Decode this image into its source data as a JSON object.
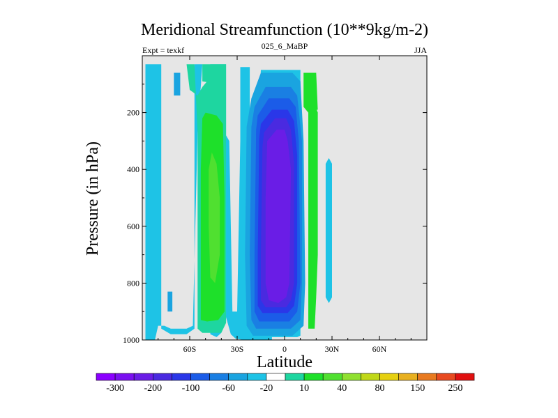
{
  "chart_data": {
    "type": "heatmap",
    "subtype": "filled-contour",
    "title": "Meridional Streamfunction (10**9kg/m-2)",
    "left_label": "Expt = texkf",
    "center_label": "025_6_MaBP",
    "right_label": "JJA",
    "xlabel": "Latitude",
    "ylabel": "Pressure (in hPa)",
    "xlim": [
      -90,
      90
    ],
    "ylim": [
      1000,
      0
    ],
    "x_ticks": [
      {
        "value": -60,
        "label": "60S"
      },
      {
        "value": -30,
        "label": "30S"
      },
      {
        "value": 0,
        "label": "0"
      },
      {
        "value": 30,
        "label": "30N"
      },
      {
        "value": 60,
        "label": "60N"
      }
    ],
    "y_ticks": [
      {
        "value": 200,
        "label": "200"
      },
      {
        "value": 400,
        "label": "400"
      },
      {
        "value": 600,
        "label": "600"
      },
      {
        "value": 800,
        "label": "800"
      },
      {
        "value": 1000,
        "label": "1000"
      }
    ],
    "missing_color": "#e6e6e6",
    "colorbar": {
      "colors": [
        "#8b00ff",
        "#7a10f0",
        "#6a1de6",
        "#4a2ae0",
        "#2a37e8",
        "#1b5ce8",
        "#1a7fe3",
        "#1aa4e0",
        "#1ec3e6",
        "#ffffff",
        "#1ed6a0",
        "#1ee02a",
        "#50e030",
        "#90e030",
        "#c0d818",
        "#e6d010",
        "#e8b020",
        "#e87a20",
        "#e84a20",
        "#e01010"
      ],
      "labels": [
        "-300",
        "-200",
        "-100",
        "-60",
        "-20",
        "10",
        "40",
        "80",
        "150",
        "250"
      ]
    },
    "regions": [
      {
        "name": "sh-high-lat-low-negative",
        "value": -10,
        "level": 8,
        "outline": [
          [
            -88,
            1000
          ],
          [
            -88,
            30
          ],
          [
            -78,
            30
          ],
          [
            -78,
            960
          ],
          [
            -72,
            980
          ],
          [
            -62,
            980
          ],
          [
            -57,
            960
          ],
          [
            -57,
            30
          ],
          [
            -47,
            30
          ],
          [
            -47,
            980
          ],
          [
            -43,
            990
          ],
          [
            -40,
            975
          ],
          [
            -37,
            920
          ],
          [
            -34,
            980
          ],
          [
            -31,
            995
          ],
          [
            -26,
            1000
          ],
          [
            -8,
            1000
          ],
          [
            -8,
            990
          ],
          [
            8,
            990
          ],
          [
            10,
            985
          ],
          [
            10,
            50
          ],
          [
            -15,
            50
          ],
          [
            -17,
            250
          ],
          [
            -20,
            280
          ],
          [
            -22,
            240
          ],
          [
            -22,
            40
          ],
          [
            -28,
            40
          ],
          [
            -28,
            300
          ],
          [
            -30,
            900
          ],
          [
            -33,
            900
          ],
          [
            -35,
            300
          ],
          [
            -37,
            280
          ],
          [
            -37,
            30
          ],
          [
            -52,
            30
          ],
          [
            -55,
            270
          ],
          [
            -58,
            950
          ],
          [
            -62,
            960
          ],
          [
            -72,
            960
          ],
          [
            -76,
            950
          ],
          [
            -80,
            950
          ],
          [
            -82,
            1000
          ]
        ]
      },
      {
        "name": "sh-inner-band-1",
        "value": -20,
        "level": 7,
        "outline": [
          [
            -70,
            60
          ],
          [
            -66,
            60
          ],
          [
            -66,
            140
          ],
          [
            -70,
            140
          ]
        ]
      },
      {
        "name": "sh-inner-band-2",
        "value": -20,
        "level": 7,
        "outline": [
          [
            -74,
            830
          ],
          [
            -71,
            830
          ],
          [
            -71,
            900
          ],
          [
            -74,
            900
          ]
        ]
      },
      {
        "name": "sh-green-outer",
        "value": 20,
        "level": 10,
        "outline": [
          [
            -64,
            30
          ],
          [
            -57,
            30
          ],
          [
            -55,
            270
          ],
          [
            -55,
            960
          ],
          [
            -52,
            975
          ],
          [
            -40,
            975
          ],
          [
            -37,
            940
          ],
          [
            -37,
            800
          ],
          [
            -37,
            280
          ],
          [
            -37,
            30
          ],
          [
            -52,
            30
          ],
          [
            -52,
            90
          ],
          [
            -47,
            95
          ],
          [
            -40,
            100
          ],
          [
            -40,
            30
          ],
          [
            -44,
            30
          ],
          [
            -49,
            90
          ],
          [
            -52,
            110
          ],
          [
            -55,
            140
          ],
          [
            -60,
            120
          ],
          [
            -62,
            30
          ]
        ]
      },
      {
        "name": "sh-green-inner",
        "value": 30,
        "level": 11,
        "outline": [
          [
            -50,
            200
          ],
          [
            -43,
            210
          ],
          [
            -39,
            240
          ],
          [
            -38,
            500
          ],
          [
            -38,
            900
          ],
          [
            -42,
            930
          ],
          [
            -49,
            935
          ],
          [
            -53,
            930
          ],
          [
            -53,
            400
          ],
          [
            -52,
            220
          ]
        ]
      },
      {
        "name": "sh-yellowgreen",
        "value": 40,
        "level": 12,
        "outline": [
          [
            -46,
            340
          ],
          [
            -43,
            380
          ],
          [
            -41,
            500
          ],
          [
            -41,
            700
          ],
          [
            -44,
            800
          ],
          [
            -47,
            780
          ],
          [
            -48,
            600
          ],
          [
            -48,
            400
          ]
        ]
      },
      {
        "name": "nh-green-strip",
        "value": 20,
        "level": 11,
        "outline": [
          [
            15,
            200
          ],
          [
            19,
            170
          ],
          [
            21,
            200
          ],
          [
            21,
            700
          ],
          [
            20,
            850
          ],
          [
            19,
            960
          ],
          [
            15,
            960
          ],
          [
            15,
            700
          ]
        ]
      },
      {
        "name": "nh-blue-small",
        "value": -10,
        "level": 8,
        "outline": [
          [
            26,
            380
          ],
          [
            28,
            360
          ],
          [
            30,
            380
          ],
          [
            30,
            850
          ],
          [
            28,
            870
          ],
          [
            26,
            850
          ]
        ]
      },
      {
        "name": "nh-green-top",
        "value": 20,
        "level": 11,
        "outline": [
          [
            12,
            60
          ],
          [
            20,
            60
          ],
          [
            21,
            190
          ],
          [
            18,
            190
          ],
          [
            15,
            200
          ],
          [
            12,
            180
          ]
        ]
      },
      {
        "name": "equatorial-cell-l1",
        "value": -20,
        "level": 7,
        "outline": [
          [
            -21,
            150
          ],
          [
            -15,
            60
          ],
          [
            5,
            60
          ],
          [
            10,
            90
          ],
          [
            12,
            300
          ],
          [
            13,
            800
          ],
          [
            12,
            950
          ],
          [
            5,
            985
          ],
          [
            -20,
            985
          ],
          [
            -24,
            950
          ],
          [
            -25,
            700
          ],
          [
            -24,
            250
          ]
        ]
      },
      {
        "name": "equatorial-cell-l2",
        "value": -40,
        "level": 6,
        "outline": [
          [
            -19,
            180
          ],
          [
            -12,
            110
          ],
          [
            4,
            110
          ],
          [
            8,
            140
          ],
          [
            11,
            300
          ],
          [
            11,
            800
          ],
          [
            10,
            930
          ],
          [
            4,
            960
          ],
          [
            -18,
            960
          ],
          [
            -21,
            930
          ],
          [
            -22,
            700
          ],
          [
            -21,
            250
          ]
        ]
      },
      {
        "name": "equatorial-cell-l3",
        "value": -60,
        "level": 5,
        "outline": [
          [
            -17,
            210
          ],
          [
            -10,
            150
          ],
          [
            3,
            150
          ],
          [
            7,
            180
          ],
          [
            9,
            300
          ],
          [
            10,
            800
          ],
          [
            8,
            900
          ],
          [
            3,
            935
          ],
          [
            -16,
            935
          ],
          [
            -19,
            900
          ],
          [
            -19,
            700
          ],
          [
            -18,
            260
          ]
        ]
      },
      {
        "name": "equatorial-cell-l4",
        "value": -100,
        "level": 4,
        "outline": [
          [
            -15,
            240
          ],
          [
            -8,
            190
          ],
          [
            2,
            190
          ],
          [
            6,
            230
          ],
          [
            8,
            350
          ],
          [
            8,
            800
          ],
          [
            6,
            880
          ],
          [
            2,
            905
          ],
          [
            -14,
            905
          ],
          [
            -17,
            880
          ],
          [
            -17,
            700
          ],
          [
            -16,
            290
          ]
        ]
      },
      {
        "name": "equatorial-cell-l5",
        "value": -150,
        "level": 3,
        "outline": [
          [
            -13,
            270
          ],
          [
            -6,
            220
          ],
          [
            1,
            220
          ],
          [
            4,
            260
          ],
          [
            6,
            380
          ],
          [
            6,
            800
          ],
          [
            4,
            860
          ],
          [
            1,
            885
          ],
          [
            -12,
            885
          ],
          [
            -15,
            860
          ],
          [
            -15,
            700
          ],
          [
            -14,
            320
          ]
        ]
      },
      {
        "name": "equatorial-cell-l6",
        "value": -200,
        "level": 2,
        "outline": [
          [
            -11,
            300
          ],
          [
            -5,
            260
          ],
          [
            0,
            260
          ],
          [
            2,
            300
          ],
          [
            4,
            400
          ],
          [
            3,
            800
          ],
          [
            1,
            850
          ],
          [
            -4,
            870
          ],
          [
            -10,
            860
          ],
          [
            -12,
            800
          ],
          [
            -12,
            500
          ]
        ]
      }
    ]
  }
}
